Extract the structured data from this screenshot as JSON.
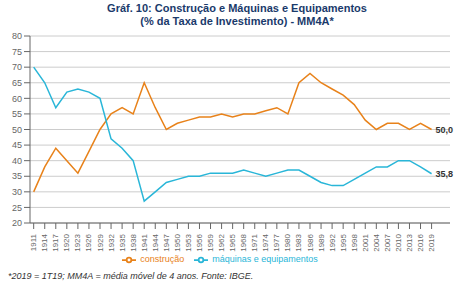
{
  "chart_data": {
    "type": "line",
    "title": "Gráf. 10: Construção e Máquinas e Equipamentos",
    "subtitle": "(% da Taxa de Investimento) - MM4A*",
    "footnote": "*2019 = 1T19; MM4A = média móvel de 4 anos. Fonte: IBGE.",
    "x": [
      1911,
      1914,
      1917,
      1920,
      1923,
      1926,
      1929,
      1932,
      1935,
      1938,
      1941,
      1944,
      1947,
      1950,
      1953,
      1956,
      1959,
      1962,
      1965,
      1968,
      1971,
      1974,
      1977,
      1980,
      1983,
      1986,
      1989,
      1992,
      1995,
      1998,
      2001,
      2004,
      2007,
      2010,
      2013,
      2016,
      2019
    ],
    "series": [
      {
        "name": "construção",
        "color": "#E8821A",
        "values": [
          30,
          38,
          44,
          40,
          36,
          43,
          50,
          55,
          57,
          55,
          65,
          57,
          50,
          52,
          53,
          54,
          54,
          55,
          54,
          55,
          55,
          56,
          57,
          55,
          65,
          68,
          65,
          63,
          61,
          58,
          53,
          50,
          52,
          52,
          50,
          52,
          50.0
        ]
      },
      {
        "name": "máquinas e equipamentos",
        "color": "#29B6D8",
        "values": [
          70,
          65,
          57,
          62,
          63,
          62,
          60,
          47,
          44,
          40,
          27,
          30,
          33,
          34,
          35,
          35,
          36,
          36,
          36,
          37,
          36,
          35,
          36,
          37,
          37,
          35,
          33,
          32,
          32,
          34,
          36,
          38,
          38,
          40,
          40,
          38,
          35.8
        ]
      }
    ],
    "annotations": [
      {
        "text": "50,0",
        "x": 2019,
        "y": 50.0
      },
      {
        "text": "35,8",
        "x": 2019,
        "y": 35.8
      }
    ],
    "xlim": [
      1910,
      2024
    ],
    "xticks": [
      1911,
      1914,
      1917,
      1920,
      1923,
      1926,
      1929,
      1932,
      1935,
      1938,
      1941,
      1944,
      1947,
      1950,
      1953,
      1956,
      1959,
      1962,
      1965,
      1968,
      1971,
      1974,
      1977,
      1980,
      1983,
      1986,
      1989,
      1992,
      1995,
      1998,
      2001,
      2004,
      2007,
      2010,
      2013,
      2016,
      2019
    ],
    "ylim": [
      20,
      80
    ],
    "yticks": [
      20,
      25,
      30,
      35,
      40,
      45,
      50,
      55,
      60,
      65,
      70,
      75,
      80
    ],
    "grid": true
  }
}
